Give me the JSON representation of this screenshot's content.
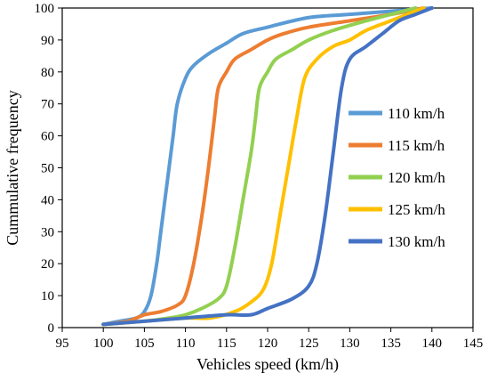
{
  "chart_data": {
    "type": "line",
    "title": "",
    "xlabel": "Vehicles speed (km/h)",
    "ylabel": "Cummulative frequency",
    "xlim": [
      95,
      145
    ],
    "ylim": [
      0,
      100
    ],
    "x_ticks": [
      "95",
      "100",
      "105",
      "110",
      "115",
      "120",
      "125",
      "130",
      "135",
      "140",
      "145"
    ],
    "y_ticks": [
      "0",
      "10",
      "20",
      "30",
      "40",
      "50",
      "60",
      "70",
      "80",
      "90",
      "100"
    ],
    "grid": false,
    "legend_position": "right",
    "series": [
      {
        "name": "110 km/h",
        "color": "#5B9BD5",
        "points": [
          [
            100,
            1
          ],
          [
            102,
            2
          ],
          [
            104,
            3
          ],
          [
            105,
            5
          ],
          [
            105.8,
            10
          ],
          [
            106.5,
            20
          ],
          [
            107,
            30
          ],
          [
            107.5,
            40
          ],
          [
            108,
            50
          ],
          [
            108.5,
            60
          ],
          [
            109,
            70
          ],
          [
            110,
            78
          ],
          [
            111,
            82
          ],
          [
            113,
            86
          ],
          [
            115,
            89
          ],
          [
            117,
            92
          ],
          [
            120,
            94
          ],
          [
            125,
            97
          ],
          [
            130,
            98
          ],
          [
            135,
            99
          ],
          [
            140,
            100
          ]
        ]
      },
      {
        "name": "115 km/h",
        "color": "#ED7D31",
        "points": [
          [
            100,
            1
          ],
          [
            103,
            2
          ],
          [
            105,
            4
          ],
          [
            107,
            5
          ],
          [
            109,
            7
          ],
          [
            110,
            10
          ],
          [
            111,
            20
          ],
          [
            112,
            35
          ],
          [
            112.8,
            50
          ],
          [
            113.5,
            65
          ],
          [
            114,
            75
          ],
          [
            115,
            80
          ],
          [
            116,
            84
          ],
          [
            118,
            87
          ],
          [
            120,
            90
          ],
          [
            122,
            92
          ],
          [
            125,
            94
          ],
          [
            130,
            96
          ],
          [
            135,
            98
          ],
          [
            139,
            100
          ]
        ]
      },
      {
        "name": "120 km/h",
        "color": "#92D050",
        "points": [
          [
            100,
            1
          ],
          [
            105,
            2
          ],
          [
            108,
            3
          ],
          [
            110,
            4
          ],
          [
            112,
            6
          ],
          [
            114,
            9
          ],
          [
            115,
            13
          ],
          [
            116,
            25
          ],
          [
            117,
            40
          ],
          [
            118,
            55
          ],
          [
            118.5,
            65
          ],
          [
            119,
            75
          ],
          [
            120,
            80
          ],
          [
            121,
            84
          ],
          [
            123,
            87
          ],
          [
            125,
            90
          ],
          [
            128,
            93
          ],
          [
            132,
            96
          ],
          [
            135,
            98
          ],
          [
            138,
            100
          ]
        ]
      },
      {
        "name": "125 km/h",
        "color": "#FFC000",
        "points": [
          [
            100,
            1
          ],
          [
            105,
            2
          ],
          [
            110,
            3
          ],
          [
            113,
            3
          ],
          [
            116,
            5
          ],
          [
            118,
            8
          ],
          [
            119.5,
            12
          ],
          [
            120.5,
            20
          ],
          [
            121.5,
            35
          ],
          [
            122.5,
            50
          ],
          [
            123.5,
            65
          ],
          [
            124.5,
            78
          ],
          [
            126,
            84
          ],
          [
            128,
            88
          ],
          [
            130,
            90
          ],
          [
            132,
            93
          ],
          [
            135,
            96
          ],
          [
            139,
            100
          ]
        ]
      },
      {
        "name": "130 km/h",
        "color": "#4472C4",
        "points": [
          [
            100,
            1
          ],
          [
            105,
            2
          ],
          [
            110,
            3
          ],
          [
            115,
            4
          ],
          [
            118,
            4
          ],
          [
            120,
            6
          ],
          [
            123,
            9
          ],
          [
            125,
            13
          ],
          [
            126,
            20
          ],
          [
            127,
            35
          ],
          [
            128,
            55
          ],
          [
            129,
            75
          ],
          [
            130,
            84
          ],
          [
            132,
            88
          ],
          [
            134,
            92
          ],
          [
            136,
            96
          ],
          [
            138,
            98
          ],
          [
            140,
            100
          ]
        ]
      }
    ]
  }
}
